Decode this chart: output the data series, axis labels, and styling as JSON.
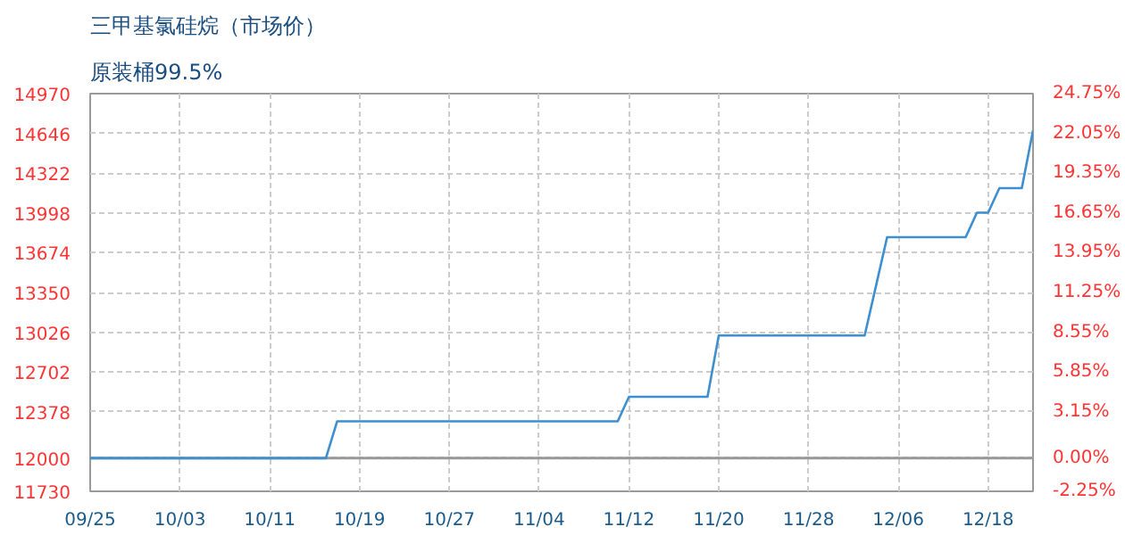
{
  "chart_data": {
    "type": "line",
    "title": "三甲基氯硅烷（市场价）",
    "subtitle": "原装桶99.5%",
    "categories": [
      "09/25",
      null,
      null,
      null,
      null,
      null,
      null,
      null,
      "10/03",
      null,
      null,
      null,
      null,
      null,
      null,
      null,
      "10/11",
      null,
      null,
      null,
      null,
      null,
      null,
      null,
      "10/19",
      null,
      null,
      null,
      null,
      null,
      null,
      null,
      "10/27",
      null,
      null,
      null,
      null,
      null,
      null,
      null,
      "11/04",
      null,
      null,
      null,
      null,
      null,
      null,
      null,
      "11/12",
      null,
      null,
      null,
      null,
      null,
      null,
      null,
      "11/20",
      null,
      null,
      null,
      null,
      null,
      null,
      null,
      "11/28",
      null,
      null,
      null,
      null,
      null,
      null,
      null,
      "12/06",
      null,
      null,
      null,
      null,
      null,
      null,
      null,
      "12/18",
      null,
      null,
      null,
      null
    ],
    "series": [
      {
        "color": "#3d8fcf",
        "values": [
          12000,
          12000,
          12000,
          12000,
          12000,
          12000,
          12000,
          12000,
          12000,
          12000,
          12000,
          12000,
          12000,
          12000,
          12000,
          12000,
          12000,
          12000,
          12000,
          12000,
          12000,
          12000,
          12300,
          12300,
          12300,
          12300,
          12300,
          12300,
          12300,
          12300,
          12300,
          12300,
          12300,
          12300,
          12300,
          12300,
          12300,
          12300,
          12300,
          12300,
          12300,
          12300,
          12300,
          12300,
          12300,
          12300,
          12300,
          12300,
          12500,
          12500,
          12500,
          12500,
          12500,
          12500,
          12500,
          12500,
          13000,
          13000,
          13000,
          13000,
          13000,
          13000,
          13000,
          13000,
          13000,
          13000,
          13000,
          13000,
          13000,
          13000,
          13400,
          13800,
          13800,
          13800,
          13800,
          13800,
          13800,
          13800,
          13800,
          14000,
          14000,
          14200,
          14200,
          14200,
          14670
        ]
      }
    ],
    "ylim": [
      11730,
      14970
    ],
    "yticks": [
      11730,
      12000,
      12378,
      12702,
      13026,
      13350,
      13674,
      13998,
      14322,
      14646,
      14970
    ],
    "y2lim": [
      -2.25,
      24.75
    ],
    "y2ticks": [
      {
        "value": -2.25,
        "label": "-2.25%"
      },
      {
        "value": 0,
        "label": "0.00%"
      },
      {
        "value": 3.15,
        "label": "3.15%"
      },
      {
        "value": 5.85,
        "label": "5.85%"
      },
      {
        "value": 8.55,
        "label": "8.55%"
      },
      {
        "value": 11.25,
        "label": "11.25%"
      },
      {
        "value": 13.95,
        "label": "13.95%"
      },
      {
        "value": 16.65,
        "label": "16.65%"
      },
      {
        "value": 19.35,
        "label": "19.35%"
      },
      {
        "value": 22.05,
        "label": "22.05%"
      },
      {
        "value": 24.75,
        "label": "24.75%"
      }
    ],
    "ref_lines": [
      {
        "axis": "y",
        "value": 12000,
        "color": "#999999"
      }
    ],
    "grid": true,
    "line_style": "solid",
    "marker": "none"
  }
}
